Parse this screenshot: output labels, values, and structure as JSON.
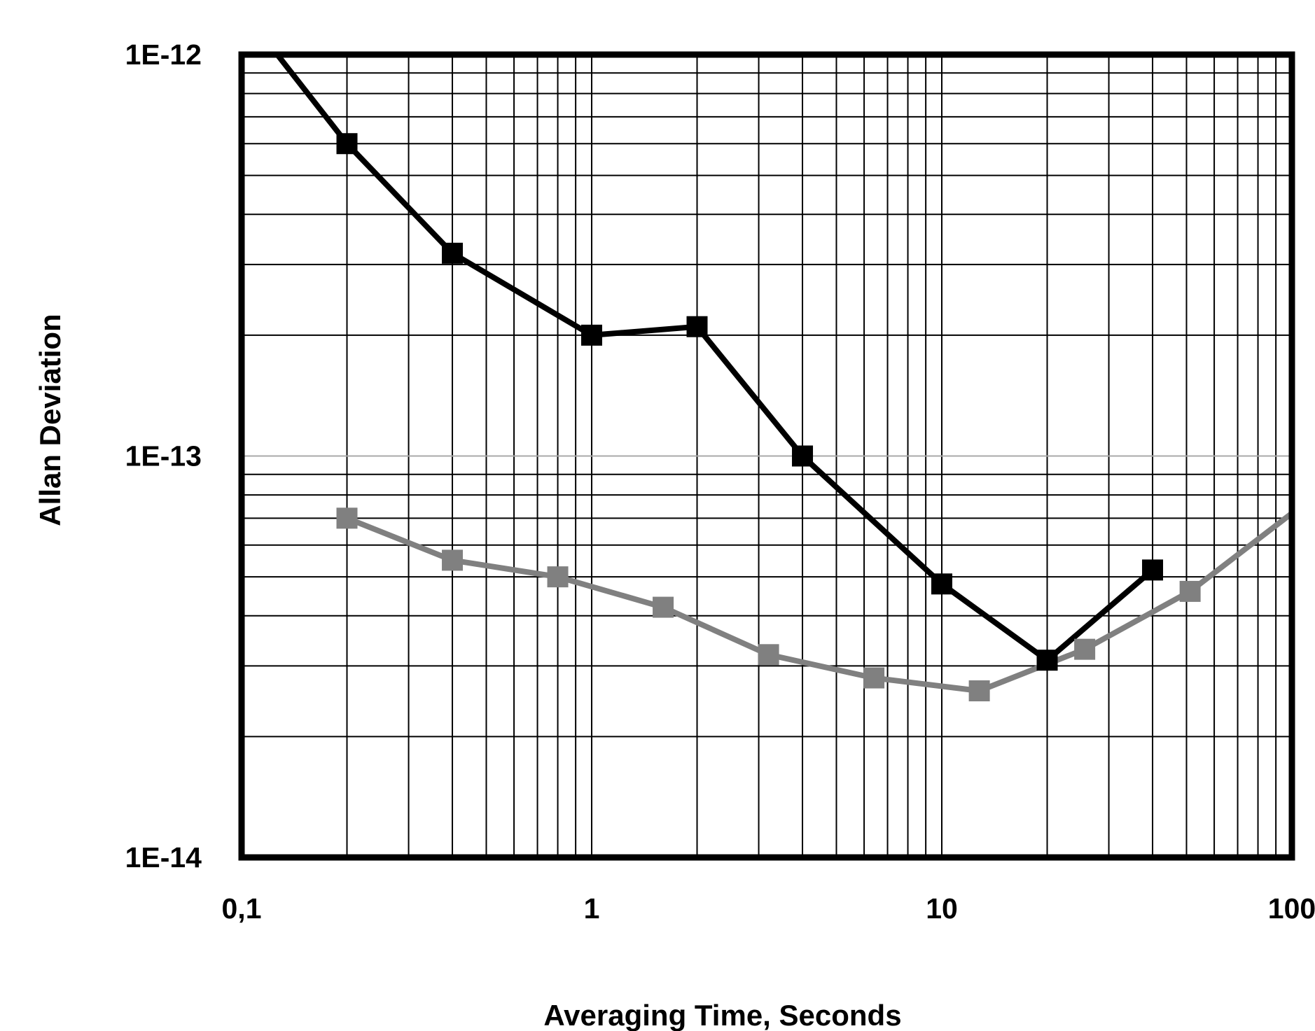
{
  "chart_data": {
    "type": "line",
    "xlabel": "Averaging Time, Seconds",
    "ylabel": "Allan Deviation",
    "x_scale": "log",
    "y_scale": "log",
    "xlim": [
      0.1,
      100
    ],
    "ylim": [
      1e-14,
      1e-12
    ],
    "x_tick_labels": [
      "0,1",
      "1",
      "10",
      "100"
    ],
    "y_tick_labels": [
      "1E-14",
      "1E-13",
      "1E-12"
    ],
    "grid": true,
    "legend": "none",
    "series": [
      {
        "color": "#000000",
        "marker": "square",
        "x": [
          0.1,
          0.2,
          0.4,
          1,
          2,
          4,
          10,
          20,
          40
        ],
        "y": [
          1.3e-12,
          6e-13,
          3.2e-13,
          2e-13,
          2.1e-13,
          1e-13,
          4.8e-14,
          3.1e-14,
          5.2e-14
        ]
      },
      {
        "color": "#808080",
        "marker": "square",
        "x": [
          0.2,
          0.4,
          0.8,
          1.6,
          3.2,
          6.4,
          12.8,
          25.6,
          51.2,
          100
        ],
        "y": [
          7e-14,
          5.5e-14,
          5e-14,
          4.2e-14,
          3.2e-14,
          2.8e-14,
          2.6e-14,
          3.3e-14,
          4.6e-14,
          7.2e-14
        ]
      }
    ]
  }
}
